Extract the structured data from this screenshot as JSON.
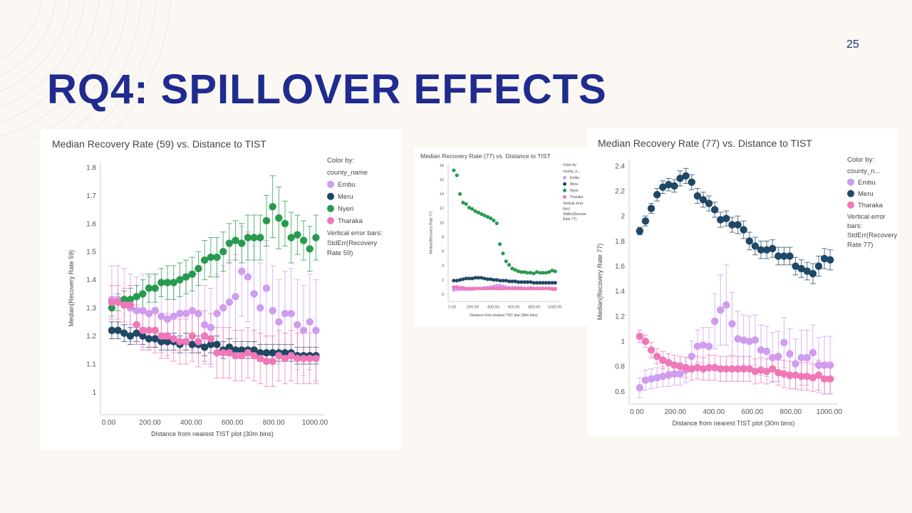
{
  "page_number": "25",
  "slide_title": "RQ4: SPILLOVER EFFECTS",
  "colors": {
    "Embu": "#cf9cef",
    "Meru": "#1f4766",
    "Nyeri": "#289a4f",
    "Tharaka": "#ef78b8",
    "title": "#1f2b8f",
    "background": "#fbf8f3"
  },
  "chart_data": [
    {
      "type": "scatter",
      "title": "Median Recovery Rate (59) vs. Distance to TIST",
      "xlabel": "Distance from nearest TIST plot (30m bins)",
      "ylabel": "Median(Recovery Rate 59)",
      "xlim": [
        -40,
        1045
      ],
      "ylim": [
        0.92,
        1.82
      ],
      "xticks": [
        0,
        200,
        400,
        600,
        800,
        1000
      ],
      "xtick_labels": [
        "0.00",
        "200.00",
        "400.00",
        "600.00",
        "800.00",
        "1000.00"
      ],
      "yticks": [
        1,
        1.1,
        1.2,
        1.3,
        1.4,
        1.5,
        1.6,
        1.7,
        1.8
      ],
      "ytick_labels": [
        "1",
        "1.1",
        "1.2",
        "1.3",
        "1.4",
        "1.5",
        "1.6",
        "1.7",
        "1.8"
      ],
      "grid": false,
      "legend_position": "right",
      "legend_header": [
        "Color by:",
        "county_name"
      ],
      "error_note": [
        "Vertical error bars:",
        "StdErr(Recovery",
        "Rate 59)"
      ],
      "x": [
        15,
        45,
        75,
        105,
        135,
        165,
        195,
        225,
        255,
        285,
        315,
        345,
        375,
        405,
        435,
        465,
        495,
        525,
        555,
        585,
        615,
        645,
        675,
        705,
        735,
        765,
        795,
        825,
        855,
        885,
        915,
        945,
        975,
        1005
      ],
      "series": [
        {
          "name": "Embu",
          "values": [
            1.33,
            1.33,
            1.32,
            1.3,
            1.29,
            1.29,
            1.28,
            1.29,
            1.27,
            1.26,
            1.27,
            1.28,
            1.28,
            1.29,
            1.28,
            1.24,
            1.23,
            1.28,
            1.3,
            1.32,
            1.34,
            1.43,
            1.41,
            1.35,
            1.3,
            1.37,
            1.29,
            1.25,
            1.28,
            1.28,
            1.24,
            1.22,
            1.25,
            1.22
          ],
          "err": [
            0.12,
            0.12,
            0.12,
            0.12,
            0.12,
            0.13,
            0.13,
            0.13,
            0.13,
            0.13,
            0.13,
            0.13,
            0.14,
            0.14,
            0.14,
            0.14,
            0.14,
            0.14,
            0.15,
            0.15,
            0.15,
            0.16,
            0.16,
            0.17,
            0.16,
            0.17,
            0.16,
            0.15,
            0.15,
            0.16,
            0.16,
            0.16,
            0.17,
            0.18
          ]
        },
        {
          "name": "Meru",
          "values": [
            1.22,
            1.22,
            1.21,
            1.2,
            1.21,
            1.2,
            1.19,
            1.19,
            1.18,
            1.18,
            1.18,
            1.17,
            1.18,
            1.17,
            1.17,
            1.16,
            1.17,
            1.17,
            1.15,
            1.16,
            1.15,
            1.15,
            1.15,
            1.15,
            1.14,
            1.14,
            1.14,
            1.14,
            1.14,
            1.14,
            1.13,
            1.13,
            1.13,
            1.13
          ],
          "err": [
            0.03,
            0.03,
            0.03,
            0.03,
            0.03,
            0.03,
            0.03,
            0.03,
            0.03,
            0.03,
            0.03,
            0.03,
            0.03,
            0.03,
            0.03,
            0.03,
            0.03,
            0.03,
            0.03,
            0.03,
            0.03,
            0.03,
            0.03,
            0.03,
            0.03,
            0.03,
            0.03,
            0.03,
            0.03,
            0.03,
            0.03,
            0.03,
            0.03,
            0.03
          ]
        },
        {
          "name": "Nyeri",
          "values": [
            1.3,
            1.32,
            1.33,
            1.33,
            1.34,
            1.35,
            1.37,
            1.37,
            1.39,
            1.39,
            1.39,
            1.4,
            1.41,
            1.42,
            1.44,
            1.47,
            1.48,
            1.48,
            1.5,
            1.53,
            1.54,
            1.53,
            1.55,
            1.55,
            1.55,
            1.61,
            1.66,
            1.62,
            1.6,
            1.55,
            1.56,
            1.54,
            1.51,
            1.55
          ],
          "err": [
            0.03,
            0.03,
            0.03,
            0.04,
            0.04,
            0.05,
            0.05,
            0.05,
            0.05,
            0.06,
            0.06,
            0.06,
            0.06,
            0.06,
            0.06,
            0.07,
            0.07,
            0.07,
            0.07,
            0.07,
            0.07,
            0.07,
            0.08,
            0.08,
            0.08,
            0.09,
            0.11,
            0.11,
            0.08,
            0.09,
            0.07,
            0.07,
            0.08,
            0.08
          ]
        },
        {
          "name": "Tharaka",
          "values": [
            1.32,
            1.32,
            1.31,
            1.31,
            1.24,
            1.22,
            1.22,
            1.22,
            1.2,
            1.2,
            1.19,
            1.18,
            1.18,
            1.2,
            1.18,
            1.2,
            1.19,
            1.14,
            1.14,
            1.14,
            1.13,
            1.13,
            1.14,
            1.13,
            1.12,
            1.11,
            1.11,
            1.13,
            1.12,
            1.13,
            1.12,
            1.12,
            1.12,
            1.12
          ],
          "err": [
            0.06,
            0.06,
            0.06,
            0.07,
            0.07,
            0.07,
            0.07,
            0.08,
            0.08,
            0.08,
            0.08,
            0.08,
            0.08,
            0.09,
            0.09,
            0.09,
            0.09,
            0.09,
            0.09,
            0.09,
            0.09,
            0.09,
            0.09,
            0.09,
            0.09,
            0.09,
            0.09,
            0.09,
            0.09,
            0.09,
            0.09,
            0.09,
            0.09,
            0.09
          ]
        }
      ]
    },
    {
      "type": "scatter",
      "title": "Median Recovery Rate (77) vs. Distance to TIST",
      "xlabel": "Distance from nearest TIST plot (30m bins)",
      "ylabel": "Median(Recovery Rate 77)",
      "xlim": [
        -40,
        1045
      ],
      "ylim": [
        -1,
        18.2
      ],
      "xticks": [
        0,
        200,
        400,
        600,
        800,
        1000
      ],
      "xtick_labels": [
        "0.00",
        "200.00",
        "400.00",
        "600.00",
        "800.00",
        "1000.00"
      ],
      "yticks": [
        0,
        2,
        4,
        6,
        8,
        10,
        12,
        14,
        16,
        18
      ],
      "ytick_labels": [
        "0",
        "2",
        "4",
        "6",
        "8",
        "10",
        "12",
        "14",
        "16",
        "18"
      ],
      "grid": false,
      "legend_position": "right",
      "legend_header": [
        "Color by:",
        "county_n..."
      ],
      "error_note": [
        "Vertical error",
        "bars:",
        "StdErr(Recove",
        "Rate 77)"
      ],
      "x": [
        15,
        45,
        75,
        105,
        135,
        165,
        195,
        225,
        255,
        285,
        315,
        345,
        375,
        405,
        435,
        465,
        495,
        525,
        555,
        585,
        615,
        645,
        675,
        705,
        735,
        765,
        795,
        825,
        855,
        885,
        915,
        945,
        975,
        1005
      ],
      "series": [
        {
          "name": "Embu",
          "values": [
            0.6,
            0.7,
            0.7,
            0.7,
            0.7,
            0.7,
            0.7,
            0.8,
            0.8,
            0.8,
            0.9,
            0.9,
            1.0,
            1.1,
            1.2,
            1.2,
            1.1,
            1.0,
            0.9,
            0.9,
            0.9,
            0.9,
            0.9,
            0.8,
            0.8,
            0.9,
            0.8,
            0.8,
            0.8,
            0.8,
            0.8,
            0.8,
            0.8,
            0.8
          ]
        },
        {
          "name": "Meru",
          "values": [
            1.9,
            1.9,
            2.0,
            2.1,
            2.2,
            2.2,
            2.2,
            2.3,
            2.3,
            2.3,
            2.2,
            2.1,
            2.1,
            2.0,
            2.0,
            1.9,
            1.9,
            1.9,
            1.8,
            1.8,
            1.8,
            1.7,
            1.7,
            1.7,
            1.7,
            1.7,
            1.6,
            1.6,
            1.6,
            1.6,
            1.6,
            1.6,
            1.6,
            1.6
          ]
        },
        {
          "name": "Nyeri",
          "values": [
            17.3,
            16.6,
            14.0,
            12.8,
            12.6,
            12.1,
            11.9,
            11.6,
            11.4,
            11.2,
            11.0,
            10.8,
            10.6,
            10.3,
            9.9,
            7.0,
            5.7,
            4.6,
            4.1,
            3.6,
            3.4,
            3.2,
            3.1,
            3.1,
            3.0,
            3.0,
            2.9,
            3.1,
            3.0,
            3.0,
            3.0,
            3.1,
            3.3,
            3.2
          ]
        },
        {
          "name": "Tharaka",
          "values": [
            1.0,
            1.0,
            0.9,
            0.9,
            0.8,
            0.8,
            0.8,
            0.8,
            0.8,
            0.8,
            0.8,
            0.8,
            0.8,
            0.8,
            0.8,
            0.8,
            0.8,
            0.8,
            0.8,
            0.8,
            0.8,
            0.8,
            0.8,
            0.8,
            0.8,
            0.8,
            0.8,
            0.8,
            0.8,
            0.8,
            0.8,
            0.8,
            0.7,
            0.7
          ]
        }
      ]
    },
    {
      "type": "scatter",
      "title": "Median Recovery Rate (77) vs. Distance to TIST",
      "xlabel": "Distance from nearest TIST plot (30m bins)",
      "ylabel": "Median(Recovery Rate 77)",
      "xlim": [
        -40,
        1045
      ],
      "ylim": [
        0.5,
        2.45
      ],
      "xticks": [
        0,
        200,
        400,
        600,
        800,
        1000
      ],
      "xtick_labels": [
        "0.00",
        "200.00",
        "400.00",
        "600.00",
        "800.00",
        "1000.00"
      ],
      "yticks": [
        0.6,
        0.8,
        1,
        1.2,
        1.4,
        1.6,
        1.8,
        2,
        2.2,
        2.4
      ],
      "ytick_labels": [
        "0.6",
        "0.8",
        "1",
        "1.2",
        "1.4",
        "1.6",
        "1.8",
        "2",
        "2.2",
        "2.4"
      ],
      "grid": false,
      "legend_position": "right",
      "legend_header": [
        "Color by:",
        "county_n..."
      ],
      "error_note": [
        "Vertical error",
        "bars:",
        "StdErr(Recovery",
        "Rate 77)"
      ],
      "x": [
        15,
        45,
        75,
        105,
        135,
        165,
        195,
        225,
        255,
        285,
        315,
        345,
        375,
        405,
        435,
        465,
        495,
        525,
        555,
        585,
        615,
        645,
        675,
        705,
        735,
        765,
        795,
        825,
        855,
        885,
        915,
        945,
        975,
        1005
      ],
      "series": [
        {
          "name": "Embu",
          "values": [
            0.63,
            0.69,
            0.7,
            0.71,
            0.72,
            0.73,
            0.74,
            0.74,
            0.77,
            0.88,
            0.96,
            0.97,
            0.96,
            1.16,
            1.25,
            1.29,
            1.14,
            1.02,
            1.01,
            1.0,
            1.01,
            0.93,
            0.92,
            0.87,
            0.88,
            0.99,
            0.9,
            0.82,
            0.87,
            0.87,
            0.91,
            0.81,
            0.81,
            0.81
          ],
          "err": [
            0.08,
            0.08,
            0.08,
            0.08,
            0.08,
            0.09,
            0.09,
            0.09,
            0.1,
            0.12,
            0.13,
            0.14,
            0.15,
            0.22,
            0.28,
            0.32,
            0.25,
            0.22,
            0.2,
            0.2,
            0.2,
            0.2,
            0.2,
            0.2,
            0.2,
            0.2,
            0.2,
            0.2,
            0.22,
            0.22,
            0.22,
            0.22,
            0.23,
            0.23
          ]
        },
        {
          "name": "Meru",
          "values": [
            1.88,
            1.96,
            2.06,
            2.17,
            2.23,
            2.25,
            2.24,
            2.3,
            2.32,
            2.27,
            2.16,
            2.13,
            2.1,
            2.05,
            1.97,
            1.98,
            1.93,
            1.93,
            1.89,
            1.8,
            1.76,
            1.73,
            1.73,
            1.74,
            1.68,
            1.68,
            1.68,
            1.6,
            1.58,
            1.56,
            1.54,
            1.6,
            1.66,
            1.65
          ],
          "err": [
            0.03,
            0.04,
            0.04,
            0.05,
            0.05,
            0.05,
            0.05,
            0.06,
            0.06,
            0.06,
            0.06,
            0.06,
            0.06,
            0.06,
            0.06,
            0.06,
            0.06,
            0.07,
            0.07,
            0.07,
            0.07,
            0.07,
            0.07,
            0.07,
            0.07,
            0.07,
            0.07,
            0.07,
            0.07,
            0.07,
            0.08,
            0.08,
            0.08,
            0.08
          ]
        },
        {
          "name": "Tharaka",
          "values": [
            1.04,
            1.0,
            0.93,
            0.88,
            0.85,
            0.83,
            0.81,
            0.8,
            0.79,
            0.78,
            0.79,
            0.78,
            0.79,
            0.79,
            0.78,
            0.78,
            0.78,
            0.78,
            0.78,
            0.78,
            0.76,
            0.77,
            0.76,
            0.78,
            0.75,
            0.74,
            0.73,
            0.73,
            0.72,
            0.72,
            0.71,
            0.73,
            0.7,
            0.7
          ],
          "err": [
            0.05,
            0.05,
            0.06,
            0.06,
            0.07,
            0.07,
            0.08,
            0.08,
            0.08,
            0.09,
            0.09,
            0.09,
            0.1,
            0.1,
            0.1,
            0.1,
            0.1,
            0.1,
            0.1,
            0.1,
            0.1,
            0.1,
            0.1,
            0.1,
            0.1,
            0.11,
            0.11,
            0.11,
            0.11,
            0.11,
            0.11,
            0.12,
            0.12,
            0.12
          ]
        }
      ]
    }
  ]
}
